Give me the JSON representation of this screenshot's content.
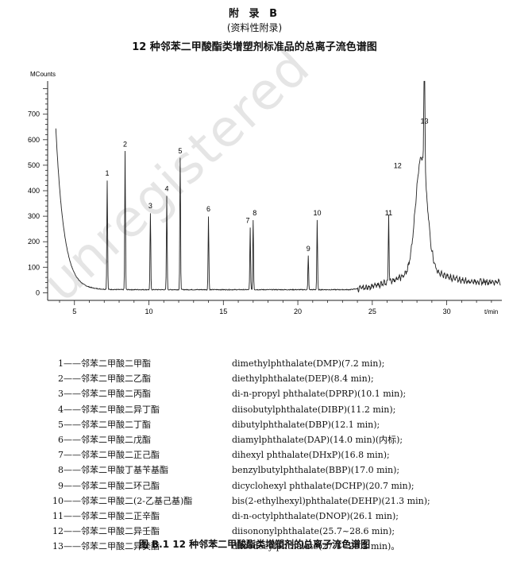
{
  "header": {
    "appendix": "附 录 B",
    "informative": "(资料性附录)",
    "title": "12 种邻苯二甲酸酯类增塑剂标准品的总离子流色谱图"
  },
  "chart_data": {
    "type": "line",
    "ylabel": "MCounts",
    "xlabel": "t/min",
    "xlim": [
      3.2,
      33.7
    ],
    "ylim": [
      -30,
      830
    ],
    "x_ticks": [
      5,
      10,
      15,
      20,
      25,
      30
    ],
    "y_ticks": [
      0,
      100,
      200,
      300,
      400,
      500,
      600,
      700
    ],
    "peaks": [
      {
        "label": "1",
        "x": 7.2,
        "y": 440
      },
      {
        "label": "2",
        "x": 8.4,
        "y": 555
      },
      {
        "label": "3",
        "x": 10.1,
        "y": 312
      },
      {
        "label": "4",
        "x": 11.2,
        "y": 380
      },
      {
        "label": "5",
        "x": 12.1,
        "y": 528
      },
      {
        "label": "6",
        "x": 14.0,
        "y": 300
      },
      {
        "label": "7",
        "x": 16.8,
        "y": 255
      },
      {
        "label": "8",
        "x": 17.0,
        "y": 285
      },
      {
        "label": "9",
        "x": 20.7,
        "y": 145
      },
      {
        "label": "10",
        "x": 21.3,
        "y": 285
      },
      {
        "label": "11",
        "x": 26.1,
        "y": 285
      },
      {
        "label": "12",
        "x": 28.3,
        "y": 470
      },
      {
        "label": "13",
        "x": 28.5,
        "y": 645
      }
    ]
  },
  "legend": [
    {
      "num": "1",
      "cn": "邻苯二甲酸二甲酯",
      "en": "dimethylphthalate(DMP)(7.2 min);"
    },
    {
      "num": "2",
      "cn": "邻苯二甲酸二乙酯",
      "en": "diethylphthalate(DEP)(8.4 min);"
    },
    {
      "num": "3",
      "cn": "邻苯二甲酸二丙酯",
      "en": "di-n-propyl phthalate(DPRP)(10.1 min);"
    },
    {
      "num": "4",
      "cn": "邻苯二甲酸二异丁酯",
      "en": "diisobutylphthalate(DIBP)(11.2 min);"
    },
    {
      "num": "5",
      "cn": "邻苯二甲酸二丁酯",
      "en": "dibutylphthalate(DBP)(12.1 min);"
    },
    {
      "num": "6",
      "cn": "邻苯二甲酸二戊酯",
      "en": "diamylphthalate(DAP)(14.0 min)(内标);"
    },
    {
      "num": "7",
      "cn": "邻苯二甲酸二正己酯",
      "en": "dihexyl phthalate(DHxP)(16.8 min);"
    },
    {
      "num": "8",
      "cn": "邻苯二甲酸丁基苄基酯",
      "en": "benzylbutylphthalate(BBP)(17.0 min);"
    },
    {
      "num": "9",
      "cn": "邻苯二甲酸二环己酯",
      "en": "dicyclohexyl phthalate(DCHP)(20.7 min);"
    },
    {
      "num": "10",
      "cn": "邻苯二甲酸二(2-乙基己基)酯",
      "en": "bis(2-ethylhexyl)phthalate(DEHP)(21.3 min);"
    },
    {
      "num": "11",
      "cn": "邻苯二甲酸二正辛酯",
      "en": "di-n-octylphthalate(DNOP)(26.1 min);"
    },
    {
      "num": "12",
      "cn": "邻苯二甲酸二异壬酯",
      "en": "diisononylphthalate(25.7~28.6 min);"
    },
    {
      "num": "13",
      "cn": "邻苯二甲酸二异癸酯",
      "en": "diisodecylphthalate(27.1~29.2 min)。"
    }
  ],
  "caption": "图 B.1  12 种邻苯二甲酸酯类增塑剂的总离子流色谱图",
  "watermark": "unregistered"
}
